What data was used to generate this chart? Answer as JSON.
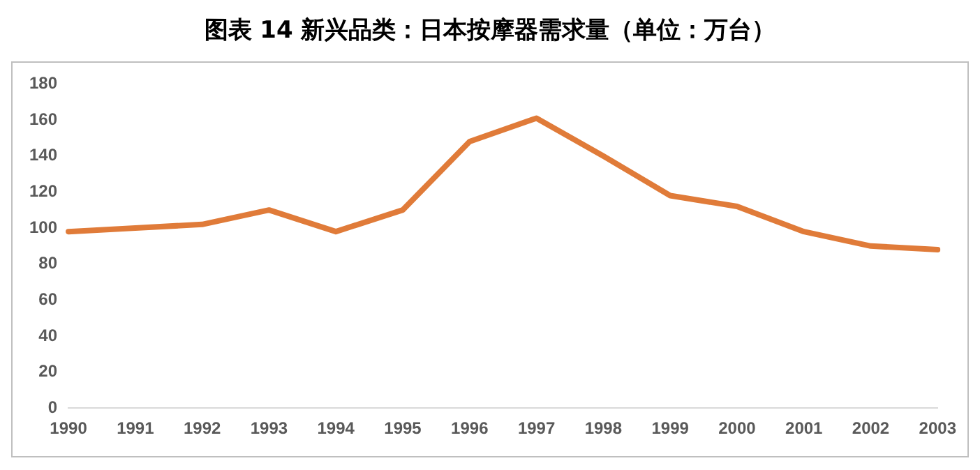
{
  "chart_data": {
    "type": "line",
    "title": "图表 14 新兴品类：日本按摩器需求量（单位：万台）",
    "categories": [
      "1990",
      "1991",
      "1992",
      "1993",
      "1994",
      "1995",
      "1996",
      "1997",
      "1998",
      "1999",
      "2000",
      "2001",
      "2002",
      "2003"
    ],
    "series": [
      {
        "color": "#e07b39",
        "values": [
          98,
          100,
          102,
          110,
          98,
          110,
          148,
          161,
          140,
          118,
          112,
          98,
          90,
          88
        ]
      }
    ],
    "ylim": [
      0,
      180
    ],
    "yticks": [
      0,
      20,
      40,
      60,
      80,
      100,
      120,
      140,
      160,
      180
    ],
    "grid": false,
    "legend": false,
    "marker": "none",
    "line_style": "solid"
  }
}
